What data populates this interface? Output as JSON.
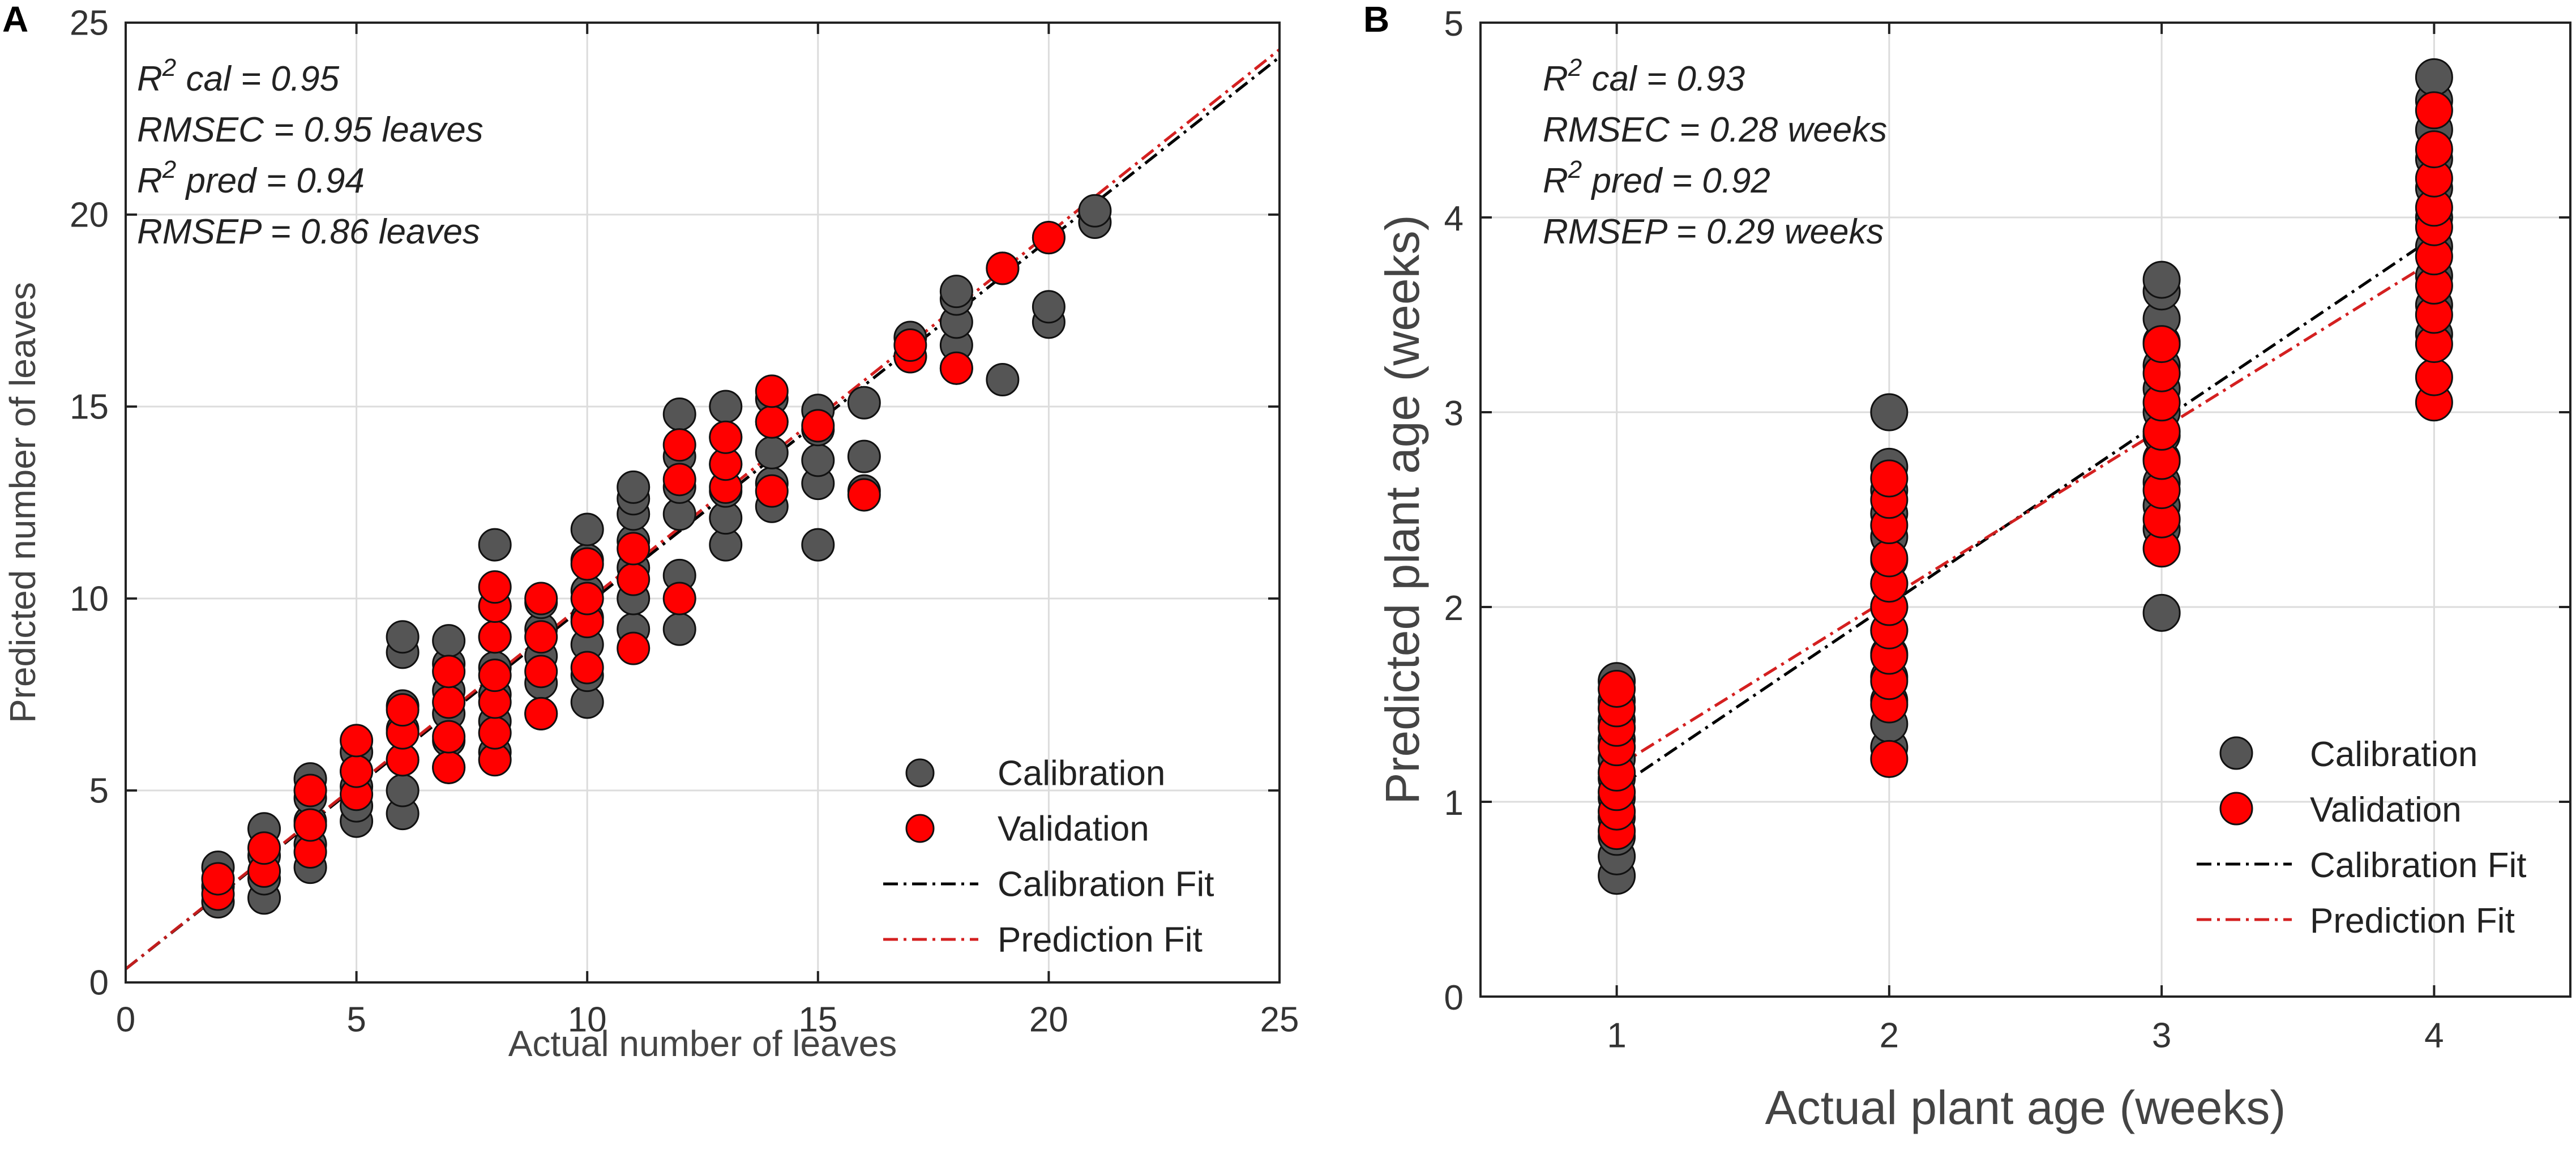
{
  "chart_data": [
    {
      "panel": "A",
      "type": "scatter",
      "xlabel": "Actual number of leaves",
      "ylabel": "Predicted number of leaves",
      "xlim": [
        0,
        25
      ],
      "ylim": [
        0,
        25
      ],
      "xticks": [
        0,
        5,
        10,
        15,
        20,
        25
      ],
      "yticks": [
        0,
        5,
        10,
        15,
        20,
        25
      ],
      "grid": true,
      "stats": [
        {
          "sym": "R",
          "sup": "2",
          "rest": " cal = 0.95"
        },
        {
          "sym": "",
          "sup": "",
          "rest": "RMSEC = 0.95 leaves"
        },
        {
          "sym": "R",
          "sup": "2",
          "rest": " pred = 0.94"
        },
        {
          "sym": "",
          "sup": "",
          "rest": "RMSEP = 0.86 leaves"
        }
      ],
      "legend": {
        "position": "bottom-right",
        "entries": [
          {
            "label": "Calibration",
            "kind": "marker",
            "color": "#555555"
          },
          {
            "label": "Validation",
            "kind": "marker",
            "color": "#ff0000"
          },
          {
            "label": "Calibration Fit",
            "kind": "line",
            "color": "#000000"
          },
          {
            "label": "Prediction Fit",
            "kind": "line",
            "color": "#d42020"
          }
        ]
      },
      "series": [
        {
          "name": "Calibration",
          "color": "#555555",
          "points": [
            [
              2,
              2.1
            ],
            [
              2,
              2.5
            ],
            [
              2,
              3.0
            ],
            [
              3,
              2.2
            ],
            [
              3,
              2.7
            ],
            [
              3,
              3.3
            ],
            [
              3,
              4.0
            ],
            [
              4,
              3.0
            ],
            [
              4,
              3.6
            ],
            [
              4,
              4.2
            ],
            [
              4,
              4.8
            ],
            [
              4,
              5.3
            ],
            [
              5,
              4.2
            ],
            [
              5,
              4.6
            ],
            [
              5,
              5.1
            ],
            [
              5,
              5.5
            ],
            [
              5,
              6.0
            ],
            [
              6,
              4.4
            ],
            [
              6,
              5.0
            ],
            [
              6,
              5.8
            ],
            [
              6,
              6.6
            ],
            [
              6,
              7.2
            ],
            [
              6,
              8.6
            ],
            [
              6,
              9.0
            ],
            [
              7,
              5.6
            ],
            [
              7,
              6.3
            ],
            [
              7,
              7.0
            ],
            [
              7,
              7.6
            ],
            [
              7,
              8.3
            ],
            [
              7,
              8.9
            ],
            [
              8,
              6.0
            ],
            [
              8,
              6.8
            ],
            [
              8,
              7.5
            ],
            [
              8,
              8.2
            ],
            [
              8,
              9.0
            ],
            [
              8,
              9.8
            ],
            [
              8,
              11.4
            ],
            [
              9,
              7.0
            ],
            [
              9,
              7.8
            ],
            [
              9,
              8.5
            ],
            [
              9,
              9.2
            ],
            [
              9,
              9.9
            ],
            [
              10,
              7.3
            ],
            [
              10,
              8.0
            ],
            [
              10,
              8.8
            ],
            [
              10,
              9.5
            ],
            [
              10,
              10.2
            ],
            [
              10,
              11.0
            ],
            [
              10,
              11.8
            ],
            [
              11,
              9.2
            ],
            [
              11,
              10.0
            ],
            [
              11,
              10.8
            ],
            [
              11,
              11.5
            ],
            [
              11,
              12.2
            ],
            [
              11,
              12.6
            ],
            [
              11,
              12.9
            ],
            [
              12,
              9.2
            ],
            [
              12,
              10.6
            ],
            [
              12,
              12.2
            ],
            [
              12,
              12.9
            ],
            [
              12,
              13.7
            ],
            [
              12,
              14.8
            ],
            [
              13,
              11.4
            ],
            [
              13,
              12.1
            ],
            [
              13,
              12.8
            ],
            [
              13,
              13.5
            ],
            [
              13,
              14.2
            ],
            [
              13,
              15.0
            ],
            [
              14,
              12.4
            ],
            [
              14,
              13.0
            ],
            [
              14,
              13.8
            ],
            [
              14,
              14.6
            ],
            [
              14,
              15.2
            ],
            [
              15,
              11.4
            ],
            [
              15,
              13.0
            ],
            [
              15,
              13.6
            ],
            [
              15,
              14.4
            ],
            [
              15,
              14.9
            ],
            [
              16,
              12.8
            ],
            [
              16,
              13.7
            ],
            [
              16,
              15.1
            ],
            [
              17,
              16.3
            ],
            [
              17,
              16.8
            ],
            [
              18,
              16.0
            ],
            [
              18,
              16.6
            ],
            [
              18,
              17.2
            ],
            [
              18,
              17.8
            ],
            [
              18,
              18.0
            ],
            [
              19,
              15.7
            ],
            [
              19,
              18.6
            ],
            [
              20,
              17.2
            ],
            [
              20,
              17.6
            ],
            [
              20,
              19.4
            ],
            [
              21,
              19.8
            ],
            [
              21,
              20.1
            ]
          ]
        },
        {
          "name": "Validation",
          "color": "#ff0000",
          "points": [
            [
              2,
              2.3
            ],
            [
              2,
              2.7
            ],
            [
              3,
              2.9
            ],
            [
              3,
              3.5
            ],
            [
              4,
              3.4
            ],
            [
              4,
              4.1
            ],
            [
              4,
              5.0
            ],
            [
              5,
              4.9
            ],
            [
              5,
              5.5
            ],
            [
              5,
              6.3
            ],
            [
              6,
              5.8
            ],
            [
              6,
              6.5
            ],
            [
              6,
              7.1
            ],
            [
              7,
              5.6
            ],
            [
              7,
              6.4
            ],
            [
              7,
              7.3
            ],
            [
              7,
              8.1
            ],
            [
              8,
              5.8
            ],
            [
              8,
              6.5
            ],
            [
              8,
              7.3
            ],
            [
              8,
              8.0
            ],
            [
              8,
              9.0
            ],
            [
              8,
              9.8
            ],
            [
              8,
              10.3
            ],
            [
              9,
              7.0
            ],
            [
              9,
              8.1
            ],
            [
              9,
              9.0
            ],
            [
              9,
              10.0
            ],
            [
              10,
              8.2
            ],
            [
              10,
              9.4
            ],
            [
              10,
              10.0
            ],
            [
              10,
              10.9
            ],
            [
              11,
              8.7
            ],
            [
              11,
              10.5
            ],
            [
              11,
              11.3
            ],
            [
              12,
              10.0
            ],
            [
              12,
              13.1
            ],
            [
              12,
              14.0
            ],
            [
              13,
              12.9
            ],
            [
              13,
              13.5
            ],
            [
              13,
              14.2
            ],
            [
              14,
              12.8
            ],
            [
              14,
              14.6
            ],
            [
              14,
              15.4
            ],
            [
              15,
              14.5
            ],
            [
              16,
              12.7
            ],
            [
              17,
              16.3
            ],
            [
              17,
              16.6
            ],
            [
              18,
              16.0
            ],
            [
              19,
              18.6
            ],
            [
              20,
              19.4
            ]
          ]
        }
      ],
      "fits": [
        {
          "name": "Calibration Fit",
          "color": "#000000",
          "x": [
            0,
            25
          ],
          "y": [
            0.35,
            24.1
          ]
        },
        {
          "name": "Prediction Fit",
          "color": "#d42020",
          "x": [
            0,
            25
          ],
          "y": [
            0.35,
            24.3
          ]
        }
      ]
    },
    {
      "panel": "B",
      "type": "scatter",
      "xlabel": "Actual plant age (weeks)",
      "ylabel": "Predicted plant age (weeks)",
      "xlim": [
        0.5,
        4.5
      ],
      "ylim": [
        0,
        5
      ],
      "xticks": [
        1,
        2,
        3,
        4
      ],
      "yticks": [
        0,
        1,
        2,
        3,
        4,
        5
      ],
      "grid": true,
      "stats": [
        {
          "sym": "R",
          "sup": "2",
          "rest": " cal = 0.93"
        },
        {
          "sym": "",
          "sup": "",
          "rest": "RMSEC = 0.28 weeks"
        },
        {
          "sym": "R",
          "sup": "2",
          "rest": " pred = 0.92"
        },
        {
          "sym": "",
          "sup": "",
          "rest": "RMSEP = 0.29 weeks"
        }
      ],
      "legend": {
        "position": "bottom-right",
        "entries": [
          {
            "label": "Calibration",
            "kind": "marker",
            "color": "#555555"
          },
          {
            "label": "Validation",
            "kind": "marker",
            "color": "#ff0000"
          },
          {
            "label": "Calibration Fit",
            "kind": "line",
            "color": "#000000"
          },
          {
            "label": "Prediction Fit",
            "kind": "line",
            "color": "#d42020"
          }
        ]
      },
      "series": [
        {
          "name": "Calibration",
          "color": "#555555",
          "points": [
            [
              1,
              0.62
            ],
            [
              1,
              0.72
            ],
            [
              1,
              0.82
            ],
            [
              1,
              0.92
            ],
            [
              1,
              1.02
            ],
            [
              1,
              1.12
            ],
            [
              1,
              1.22
            ],
            [
              1,
              1.32
            ],
            [
              1,
              1.42
            ],
            [
              1,
              1.52
            ],
            [
              1,
              1.62
            ],
            [
              2,
              1.28
            ],
            [
              2,
              1.4
            ],
            [
              2,
              1.52
            ],
            [
              2,
              1.64
            ],
            [
              2,
              1.76
            ],
            [
              2,
              1.88
            ],
            [
              2,
              2.0
            ],
            [
              2,
              2.12
            ],
            [
              2,
              2.24
            ],
            [
              2,
              2.36
            ],
            [
              2,
              2.48
            ],
            [
              2,
              2.6
            ],
            [
              2,
              2.72
            ],
            [
              2,
              3.0
            ],
            [
              3,
              1.97
            ],
            [
              3,
              2.4
            ],
            [
              3,
              2.52
            ],
            [
              3,
              2.64
            ],
            [
              3,
              2.76
            ],
            [
              3,
              2.88
            ],
            [
              3,
              3.0
            ],
            [
              3,
              3.12
            ],
            [
              3,
              3.24
            ],
            [
              3,
              3.36
            ],
            [
              3,
              3.48
            ],
            [
              3,
              3.62
            ],
            [
              3,
              3.68
            ],
            [
              4,
              3.4
            ],
            [
              4,
              3.55
            ],
            [
              4,
              3.7
            ],
            [
              4,
              3.85
            ],
            [
              4,
              4.0
            ],
            [
              4,
              4.15
            ],
            [
              4,
              4.3
            ],
            [
              4,
              4.45
            ],
            [
              4,
              4.6
            ],
            [
              4,
              4.72
            ]
          ]
        },
        {
          "name": "Validation",
          "color": "#ff0000",
          "points": [
            [
              1,
              0.85
            ],
            [
              1,
              0.95
            ],
            [
              1,
              1.05
            ],
            [
              1,
              1.15
            ],
            [
              1,
              1.28
            ],
            [
              1,
              1.38
            ],
            [
              1,
              1.48
            ],
            [
              1,
              1.58
            ],
            [
              2,
              1.22
            ],
            [
              2,
              1.5
            ],
            [
              2,
              1.62
            ],
            [
              2,
              1.75
            ],
            [
              2,
              1.88
            ],
            [
              2,
              2.0
            ],
            [
              2,
              2.12
            ],
            [
              2,
              2.25
            ],
            [
              2,
              2.42
            ],
            [
              2,
              2.55
            ],
            [
              2,
              2.66
            ],
            [
              3,
              2.3
            ],
            [
              3,
              2.45
            ],
            [
              3,
              2.6
            ],
            [
              3,
              2.75
            ],
            [
              3,
              2.9
            ],
            [
              3,
              3.05
            ],
            [
              3,
              3.2
            ],
            [
              3,
              3.35
            ],
            [
              4,
              3.05
            ],
            [
              4,
              3.18
            ],
            [
              4,
              3.35
            ],
            [
              4,
              3.5
            ],
            [
              4,
              3.65
            ],
            [
              4,
              3.8
            ],
            [
              4,
              3.95
            ],
            [
              4,
              4.05
            ],
            [
              4,
              4.2
            ],
            [
              4,
              4.35
            ],
            [
              4,
              4.55
            ]
          ]
        }
      ],
      "fits": [
        {
          "name": "Calibration Fit",
          "color": "#000000",
          "x": [
            1,
            4
          ],
          "y": [
            1.07,
            3.9
          ]
        },
        {
          "name": "Prediction Fit",
          "color": "#d42020",
          "x": [
            1,
            4
          ],
          "y": [
            1.18,
            3.78
          ]
        }
      ]
    }
  ]
}
